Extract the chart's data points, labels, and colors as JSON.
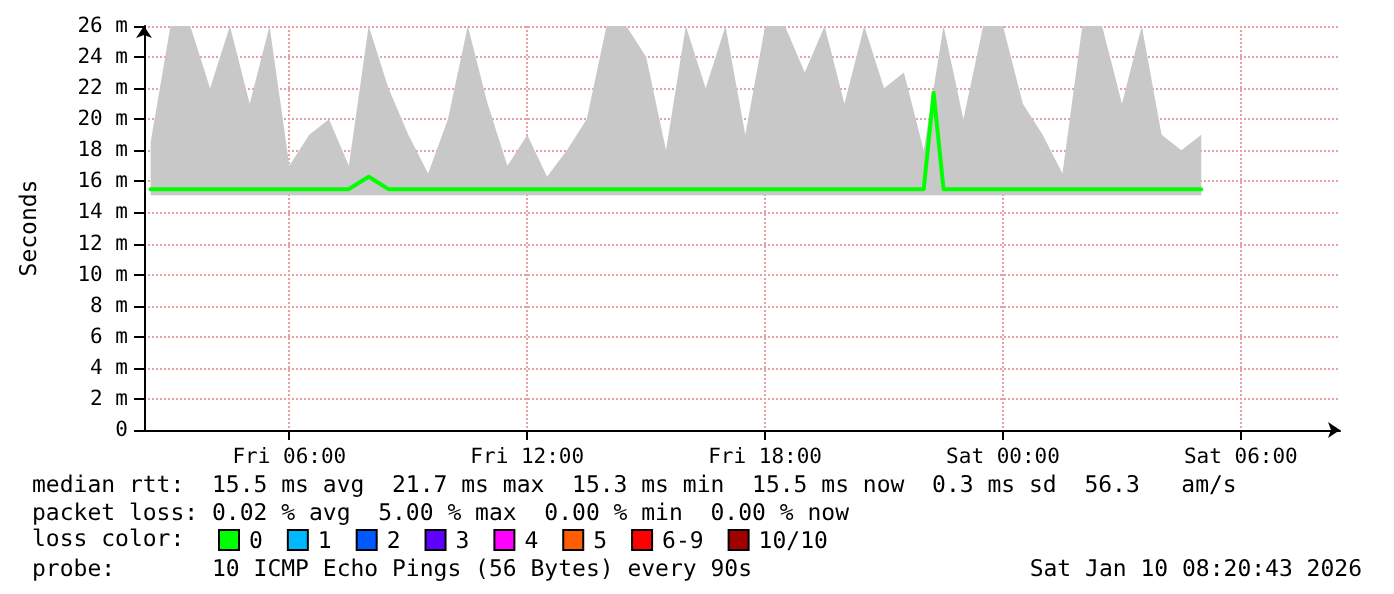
{
  "chart_data": {
    "type": "line",
    "ylabel": "Seconds",
    "x": [
      "2026-01-09T02:30",
      "2026-01-09T03:00",
      "2026-01-09T03:30",
      "2026-01-09T04:00",
      "2026-01-09T04:30",
      "2026-01-09T05:00",
      "2026-01-09T05:30",
      "2026-01-09T06:00",
      "2026-01-09T06:30",
      "2026-01-09T07:00",
      "2026-01-09T07:30",
      "2026-01-09T08:00",
      "2026-01-09T08:30",
      "2026-01-09T09:00",
      "2026-01-09T09:30",
      "2026-01-09T10:00",
      "2026-01-09T10:30",
      "2026-01-09T11:00",
      "2026-01-09T11:30",
      "2026-01-09T12:00",
      "2026-01-09T12:30",
      "2026-01-09T13:00",
      "2026-01-09T13:30",
      "2026-01-09T14:00",
      "2026-01-09T14:30",
      "2026-01-09T15:00",
      "2026-01-09T15:30",
      "2026-01-09T16:00",
      "2026-01-09T16:30",
      "2026-01-09T17:00",
      "2026-01-09T17:30",
      "2026-01-09T18:00",
      "2026-01-09T18:30",
      "2026-01-09T19:00",
      "2026-01-09T19:30",
      "2026-01-09T20:00",
      "2026-01-09T20:30",
      "2026-01-09T21:00",
      "2026-01-09T21:30",
      "2026-01-09T22:00",
      "2026-01-09T22:15",
      "2026-01-09T22:30",
      "2026-01-09T23:00",
      "2026-01-09T23:30",
      "2026-01-10T00:00",
      "2026-01-10T00:30",
      "2026-01-10T01:00",
      "2026-01-10T01:30",
      "2026-01-10T02:00",
      "2026-01-10T02:30",
      "2026-01-10T03:00",
      "2026-01-10T03:30",
      "2026-01-10T04:00",
      "2026-01-10T04:30",
      "2026-01-10T05:00"
    ],
    "series": [
      {
        "name": "0",
        "color": "#00ff00",
        "values": [
          15.5,
          15.5,
          15.5,
          15.5,
          15.5,
          15.5,
          15.5,
          15.5,
          15.5,
          15.5,
          15.5,
          16.3,
          15.5,
          15.5,
          15.5,
          15.5,
          15.5,
          15.5,
          15.5,
          15.5,
          15.5,
          15.5,
          15.5,
          15.5,
          15.5,
          15.5,
          15.5,
          15.5,
          15.5,
          15.5,
          15.5,
          15.5,
          15.5,
          15.5,
          15.5,
          15.5,
          15.5,
          15.5,
          15.5,
          15.5,
          21.7,
          15.5,
          15.5,
          15.5,
          15.5,
          15.5,
          15.5,
          15.5,
          15.5,
          15.5,
          15.5,
          15.5,
          15.5,
          15.5,
          15.5
        ],
        "lower": [
          15.1,
          15.1,
          15.1,
          15.1,
          15.1,
          15.1,
          15.1,
          15.1,
          15.1,
          15.1,
          15.1,
          15.1,
          15.1,
          15.1,
          15.1,
          15.1,
          15.1,
          15.1,
          15.1,
          15.1,
          15.1,
          15.1,
          15.1,
          15.1,
          15.1,
          15.1,
          15.1,
          15.1,
          15.1,
          15.1,
          15.1,
          15.1,
          15.1,
          15.1,
          15.1,
          15.1,
          15.1,
          15.1,
          15.1,
          15.1,
          15.1,
          15.1,
          15.1,
          15.1,
          15.1,
          15.1,
          15.1,
          15.1,
          15.1,
          15.1,
          15.1,
          15.1,
          15.1,
          15.1,
          15.1
        ],
        "upper": [
          18.5,
          26,
          26,
          22,
          26,
          21,
          26,
          17,
          19,
          20,
          17,
          26,
          22,
          19,
          16.5,
          20,
          26,
          21,
          17,
          19,
          16.3,
          18,
          20,
          26,
          26,
          24,
          18,
          26,
          22,
          26,
          19,
          26,
          26,
          23,
          26,
          21,
          26,
          22,
          23,
          18,
          22,
          26,
          20,
          26,
          26,
          21,
          19,
          16.5,
          26,
          26,
          21,
          26,
          19,
          18,
          19
        ]
      },
      {
        "name": "1",
        "color": "#00b8ff",
        "values": [
          null,
          null,
          null,
          null,
          null,
          null,
          null,
          null,
          null,
          null,
          null,
          null,
          null,
          null,
          null,
          null,
          null,
          null,
          null,
          null,
          null,
          null,
          null,
          null,
          null,
          null,
          null,
          null,
          null,
          null,
          null,
          null,
          null,
          null,
          null,
          null,
          null,
          null,
          null,
          null,
          null,
          null,
          null,
          null,
          null,
          null,
          null,
          null,
          null,
          null,
          null,
          null,
          null,
          null,
          null
        ]
      },
      {
        "name": "2",
        "color": "#0059ff",
        "values": [
          null,
          null,
          null,
          null,
          null,
          null,
          null,
          null,
          null,
          null,
          null,
          null,
          null,
          null,
          null,
          null,
          null,
          null,
          null,
          null,
          null,
          null,
          null,
          null,
          null,
          null,
          null,
          null,
          null,
          null,
          null,
          null,
          null,
          null,
          null,
          null,
          null,
          null,
          null,
          null,
          null,
          null,
          null,
          null,
          null,
          null,
          null,
          null,
          null,
          null,
          null,
          null,
          null,
          null,
          null
        ]
      },
      {
        "name": "3",
        "color": "#5e00ff",
        "values": [
          null,
          null,
          null,
          null,
          null,
          null,
          null,
          null,
          null,
          null,
          null,
          null,
          null,
          null,
          null,
          null,
          null,
          null,
          null,
          null,
          null,
          null,
          null,
          null,
          null,
          null,
          null,
          null,
          null,
          null,
          null,
          null,
          null,
          null,
          null,
          null,
          null,
          null,
          null,
          null,
          null,
          null,
          null,
          null,
          null,
          null,
          null,
          null,
          null,
          null,
          null,
          null,
          null,
          null,
          null
        ]
      },
      {
        "name": "4",
        "color": "#ff00ff",
        "values": [
          null,
          null,
          null,
          null,
          null,
          null,
          null,
          null,
          null,
          null,
          null,
          null,
          null,
          null,
          null,
          null,
          null,
          null,
          null,
          null,
          null,
          null,
          null,
          null,
          null,
          null,
          null,
          null,
          null,
          null,
          null,
          null,
          null,
          null,
          null,
          null,
          null,
          null,
          null,
          null,
          null,
          null,
          null,
          null,
          null,
          null,
          null,
          null,
          null,
          null,
          null,
          null,
          null,
          null,
          null
        ]
      },
      {
        "name": "5",
        "color": "#ff5e00",
        "values": [
          null,
          null,
          null,
          null,
          null,
          null,
          null,
          null,
          null,
          null,
          null,
          null,
          null,
          null,
          null,
          null,
          null,
          null,
          null,
          null,
          null,
          null,
          null,
          null,
          null,
          null,
          null,
          null,
          null,
          null,
          null,
          null,
          null,
          null,
          null,
          null,
          null,
          null,
          null,
          null,
          null,
          null,
          null,
          null,
          null,
          null,
          null,
          null,
          null,
          null,
          null,
          null,
          null,
          null,
          null
        ]
      },
      {
        "name": "6-9",
        "color": "#ff0000",
        "values": [
          null,
          null,
          null,
          null,
          null,
          null,
          null,
          null,
          null,
          null,
          null,
          null,
          null,
          null,
          null,
          null,
          null,
          null,
          null,
          null,
          null,
          null,
          null,
          null,
          null,
          null,
          null,
          null,
          null,
          null,
          null,
          null,
          null,
          null,
          null,
          null,
          null,
          null,
          null,
          null,
          null,
          null,
          null,
          null,
          null,
          null,
          null,
          null,
          null,
          null,
          null,
          null,
          null,
          null,
          null
        ]
      },
      {
        "name": "10/10",
        "color": "#a10000",
        "values": [
          null,
          null,
          null,
          null,
          null,
          null,
          null,
          null,
          null,
          null,
          null,
          null,
          null,
          null,
          null,
          null,
          null,
          null,
          null,
          null,
          null,
          null,
          null,
          null,
          null,
          null,
          null,
          null,
          null,
          null,
          null,
          null,
          null,
          null,
          null,
          null,
          null,
          null,
          null,
          null,
          null,
          null,
          null,
          null,
          null,
          null,
          null,
          null,
          null,
          null,
          null,
          null,
          null,
          null,
          null
        ]
      }
    ],
    "legend_title": "loss color:",
    "legend": "bottom",
    "annotations": [
      "median rtt:  15.5 ms avg  21.7 ms max  15.3 ms min  15.5 ms now  0.3 ms sd  56.3   am/s",
      "packet loss: 0.02 % avg  5.00 % max  0.00 % min  0.00 % now",
      "probe:       10 ICMP Echo Pings (56 Bytes) every 90s",
      "Sat Jan 10 08:20:43 2026"
    ],
    "xlim": [
      "2026-01-09T02:20",
      "2026-01-10T08:30"
    ],
    "xticks": [
      {
        "value": "2026-01-09T06:00",
        "label": "Fri 06:00"
      },
      {
        "value": "2026-01-09T12:00",
        "label": "Fri 12:00"
      },
      {
        "value": "2026-01-09T18:00",
        "label": "Fri 18:00"
      },
      {
        "value": "2026-01-10T00:00",
        "label": "Sat 00:00"
      },
      {
        "value": "2026-01-10T06:00",
        "label": "Sat 06:00"
      }
    ],
    "ylim": [
      0,
      26
    ],
    "yticks": [
      0,
      {
        "value": 2,
        "label": "2 m"
      },
      {
        "value": 4,
        "label": "4 m"
      },
      {
        "value": 6,
        "label": "6 m"
      },
      {
        "value": 8,
        "label": "8 m"
      },
      {
        "value": 10,
        "label": "10 m"
      },
      {
        "value": 12,
        "label": "12 m"
      },
      {
        "value": 14,
        "label": "14 m"
      },
      {
        "value": 16,
        "label": "16 m"
      },
      {
        "value": 18,
        "label": "18 m"
      },
      {
        "value": 20,
        "label": "20 m"
      },
      {
        "value": 22,
        "label": "22 m"
      },
      {
        "value": 24,
        "label": "24 m"
      },
      {
        "value": 26,
        "label": "26 m"
      }
    ],
    "grid": true,
    "marker": "none",
    "line_style": "solid"
  }
}
